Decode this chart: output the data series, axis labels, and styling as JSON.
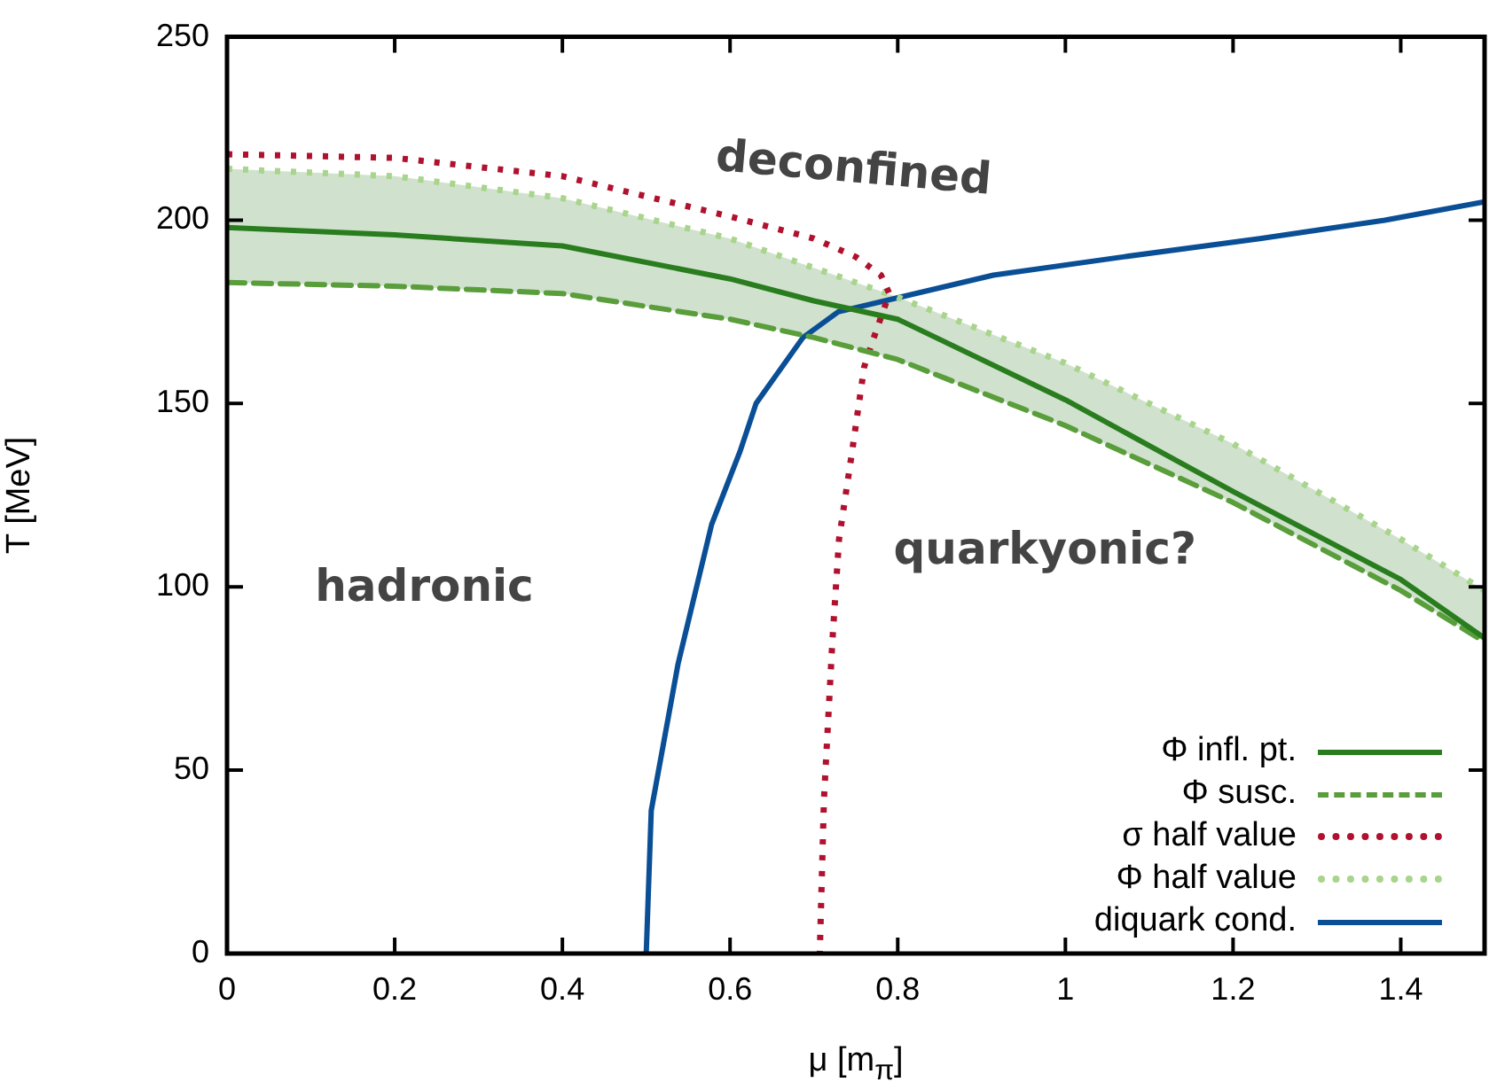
{
  "chart_data": {
    "type": "line",
    "xlabel": "μ [m$_{π}$]",
    "ylabel": "T [MeV]",
    "xlim": [
      0,
      1.5
    ],
    "xticks": [
      0,
      0.2,
      0.4,
      0.6,
      0.8,
      1,
      1.2,
      1.4
    ],
    "ylim": [
      0,
      250
    ],
    "yticks": [
      0,
      50,
      100,
      150,
      200,
      250
    ],
    "grid": false,
    "legend": "bottom right",
    "marker": "none",
    "annotations": [
      "deconfined",
      "hadronic",
      "quarkyonic?"
    ],
    "series": [
      {
        "name": "Φ infl. pt.",
        "color": "#2a7d1e",
        "line_style": "solid",
        "x": [
          0,
          0.2,
          0.4,
          0.6,
          0.7,
          0.8,
          1,
          1.2,
          1.4,
          1.5
        ],
        "values": [
          198,
          196,
          193,
          184,
          178,
          173,
          151,
          126,
          102,
          86
        ],
        "lower": [
          183,
          182,
          180,
          173,
          168,
          162,
          144,
          123,
          99,
          85
        ],
        "upper": [
          214,
          212,
          206,
          195,
          187,
          179,
          161,
          139,
          113,
          99
        ]
      },
      {
        "name": "Φ susc.",
        "color": "#5a9e3c",
        "line_style": "dashed",
        "x": [
          0,
          0.2,
          0.4,
          0.6,
          0.7,
          0.8,
          1,
          1.2,
          1.4,
          1.5
        ],
        "values": [
          183,
          182,
          180,
          173,
          168,
          162,
          144,
          123,
          99,
          85
        ]
      },
      {
        "name": "σ half value",
        "color": "#b0112e",
        "line_style": "dotted",
        "x": [
          0,
          0.2,
          0.4,
          0.6,
          0.7,
          0.75,
          0.78,
          0.79,
          0.77,
          0.76,
          0.745,
          0.73,
          0.722,
          0.712,
          0.707
        ],
        "values": [
          218,
          217,
          212,
          201,
          195,
          190,
          185,
          180,
          167,
          160,
          136,
          113,
          85,
          42,
          0
        ]
      },
      {
        "name": "Φ half value",
        "color": "#a8d48c",
        "line_style": "dotted",
        "x": [
          0,
          0.2,
          0.4,
          0.6,
          0.7,
          0.8,
          1,
          1.2,
          1.4,
          1.5
        ],
        "values": [
          214,
          212,
          206,
          195,
          187,
          179,
          161,
          139,
          113,
          99
        ]
      },
      {
        "name": "diquark cond.",
        "color": "#0a4f96",
        "line_style": "solid",
        "x": [
          0.5,
          0.506,
          0.538,
          0.578,
          0.612,
          0.631,
          0.687,
          0.729,
          0.914,
          1.069,
          1.232,
          1.381,
          1.5
        ],
        "values": [
          0,
          39,
          79,
          117,
          137,
          150,
          168,
          175,
          185,
          190,
          195,
          200,
          205
        ]
      }
    ]
  }
}
